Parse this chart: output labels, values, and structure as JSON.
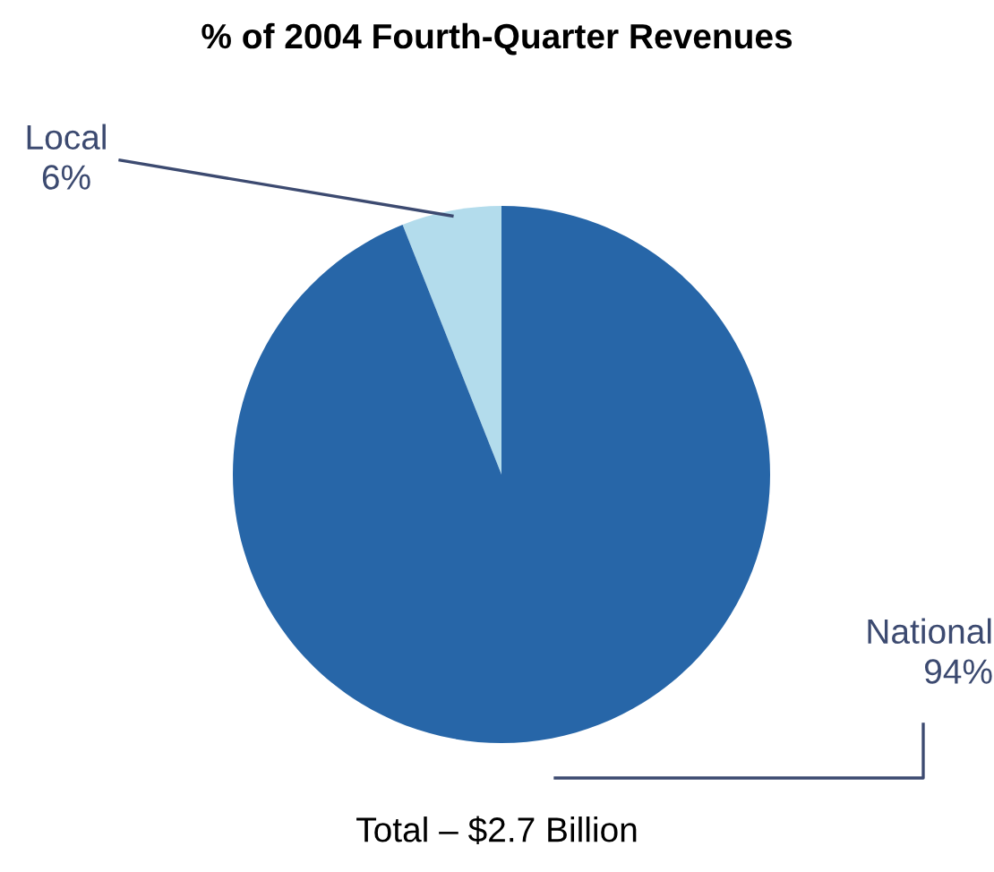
{
  "chart_data": {
    "type": "pie",
    "title": "% of 2004 Fourth-Quarter Revenues",
    "categories": [
      "Local",
      "National"
    ],
    "values": [
      6,
      94
    ],
    "colors": [
      "#b3dcec",
      "#2766a8"
    ],
    "value_labels": [
      "6%",
      "94%"
    ],
    "annotations": [
      "Total – $2.7 Billion"
    ]
  }
}
